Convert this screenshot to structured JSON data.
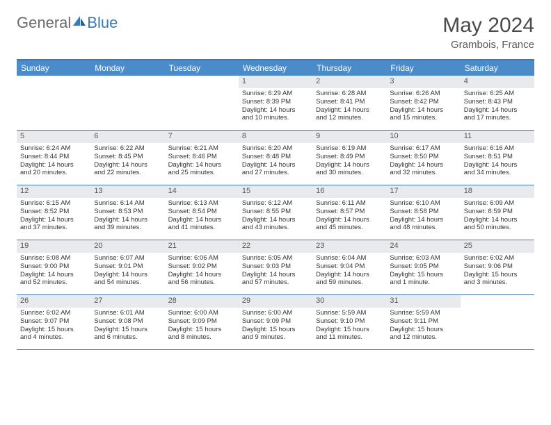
{
  "logo": {
    "part1": "General",
    "part2": "Blue"
  },
  "title": "May 2024",
  "subtitle": "Grambois, France",
  "colors": {
    "header_bg": "#4a8bc9",
    "border": "#3a7ab8",
    "daynum_bg": "#e8eaed",
    "text": "#333333"
  },
  "weekdays": [
    "Sunday",
    "Monday",
    "Tuesday",
    "Wednesday",
    "Thursday",
    "Friday",
    "Saturday"
  ],
  "weeks": [
    [
      {
        "n": "",
        "lines": [
          "",
          "",
          "",
          ""
        ]
      },
      {
        "n": "",
        "lines": [
          "",
          "",
          "",
          ""
        ]
      },
      {
        "n": "",
        "lines": [
          "",
          "",
          "",
          ""
        ]
      },
      {
        "n": "1",
        "lines": [
          "Sunrise: 6:29 AM",
          "Sunset: 8:39 PM",
          "Daylight: 14 hours",
          "and 10 minutes."
        ]
      },
      {
        "n": "2",
        "lines": [
          "Sunrise: 6:28 AM",
          "Sunset: 8:41 PM",
          "Daylight: 14 hours",
          "and 12 minutes."
        ]
      },
      {
        "n": "3",
        "lines": [
          "Sunrise: 6:26 AM",
          "Sunset: 8:42 PM",
          "Daylight: 14 hours",
          "and 15 minutes."
        ]
      },
      {
        "n": "4",
        "lines": [
          "Sunrise: 6:25 AM",
          "Sunset: 8:43 PM",
          "Daylight: 14 hours",
          "and 17 minutes."
        ]
      }
    ],
    [
      {
        "n": "5",
        "lines": [
          "Sunrise: 6:24 AM",
          "Sunset: 8:44 PM",
          "Daylight: 14 hours",
          "and 20 minutes."
        ]
      },
      {
        "n": "6",
        "lines": [
          "Sunrise: 6:22 AM",
          "Sunset: 8:45 PM",
          "Daylight: 14 hours",
          "and 22 minutes."
        ]
      },
      {
        "n": "7",
        "lines": [
          "Sunrise: 6:21 AM",
          "Sunset: 8:46 PM",
          "Daylight: 14 hours",
          "and 25 minutes."
        ]
      },
      {
        "n": "8",
        "lines": [
          "Sunrise: 6:20 AM",
          "Sunset: 8:48 PM",
          "Daylight: 14 hours",
          "and 27 minutes."
        ]
      },
      {
        "n": "9",
        "lines": [
          "Sunrise: 6:19 AM",
          "Sunset: 8:49 PM",
          "Daylight: 14 hours",
          "and 30 minutes."
        ]
      },
      {
        "n": "10",
        "lines": [
          "Sunrise: 6:17 AM",
          "Sunset: 8:50 PM",
          "Daylight: 14 hours",
          "and 32 minutes."
        ]
      },
      {
        "n": "11",
        "lines": [
          "Sunrise: 6:16 AM",
          "Sunset: 8:51 PM",
          "Daylight: 14 hours",
          "and 34 minutes."
        ]
      }
    ],
    [
      {
        "n": "12",
        "lines": [
          "Sunrise: 6:15 AM",
          "Sunset: 8:52 PM",
          "Daylight: 14 hours",
          "and 37 minutes."
        ]
      },
      {
        "n": "13",
        "lines": [
          "Sunrise: 6:14 AM",
          "Sunset: 8:53 PM",
          "Daylight: 14 hours",
          "and 39 minutes."
        ]
      },
      {
        "n": "14",
        "lines": [
          "Sunrise: 6:13 AM",
          "Sunset: 8:54 PM",
          "Daylight: 14 hours",
          "and 41 minutes."
        ]
      },
      {
        "n": "15",
        "lines": [
          "Sunrise: 6:12 AM",
          "Sunset: 8:55 PM",
          "Daylight: 14 hours",
          "and 43 minutes."
        ]
      },
      {
        "n": "16",
        "lines": [
          "Sunrise: 6:11 AM",
          "Sunset: 8:57 PM",
          "Daylight: 14 hours",
          "and 45 minutes."
        ]
      },
      {
        "n": "17",
        "lines": [
          "Sunrise: 6:10 AM",
          "Sunset: 8:58 PM",
          "Daylight: 14 hours",
          "and 48 minutes."
        ]
      },
      {
        "n": "18",
        "lines": [
          "Sunrise: 6:09 AM",
          "Sunset: 8:59 PM",
          "Daylight: 14 hours",
          "and 50 minutes."
        ]
      }
    ],
    [
      {
        "n": "19",
        "lines": [
          "Sunrise: 6:08 AM",
          "Sunset: 9:00 PM",
          "Daylight: 14 hours",
          "and 52 minutes."
        ]
      },
      {
        "n": "20",
        "lines": [
          "Sunrise: 6:07 AM",
          "Sunset: 9:01 PM",
          "Daylight: 14 hours",
          "and 54 minutes."
        ]
      },
      {
        "n": "21",
        "lines": [
          "Sunrise: 6:06 AM",
          "Sunset: 9:02 PM",
          "Daylight: 14 hours",
          "and 56 minutes."
        ]
      },
      {
        "n": "22",
        "lines": [
          "Sunrise: 6:05 AM",
          "Sunset: 9:03 PM",
          "Daylight: 14 hours",
          "and 57 minutes."
        ]
      },
      {
        "n": "23",
        "lines": [
          "Sunrise: 6:04 AM",
          "Sunset: 9:04 PM",
          "Daylight: 14 hours",
          "and 59 minutes."
        ]
      },
      {
        "n": "24",
        "lines": [
          "Sunrise: 6:03 AM",
          "Sunset: 9:05 PM",
          "Daylight: 15 hours",
          "and 1 minute."
        ]
      },
      {
        "n": "25",
        "lines": [
          "Sunrise: 6:02 AM",
          "Sunset: 9:06 PM",
          "Daylight: 15 hours",
          "and 3 minutes."
        ]
      }
    ],
    [
      {
        "n": "26",
        "lines": [
          "Sunrise: 6:02 AM",
          "Sunset: 9:07 PM",
          "Daylight: 15 hours",
          "and 4 minutes."
        ]
      },
      {
        "n": "27",
        "lines": [
          "Sunrise: 6:01 AM",
          "Sunset: 9:08 PM",
          "Daylight: 15 hours",
          "and 6 minutes."
        ]
      },
      {
        "n": "28",
        "lines": [
          "Sunrise: 6:00 AM",
          "Sunset: 9:09 PM",
          "Daylight: 15 hours",
          "and 8 minutes."
        ]
      },
      {
        "n": "29",
        "lines": [
          "Sunrise: 6:00 AM",
          "Sunset: 9:09 PM",
          "Daylight: 15 hours",
          "and 9 minutes."
        ]
      },
      {
        "n": "30",
        "lines": [
          "Sunrise: 5:59 AM",
          "Sunset: 9:10 PM",
          "Daylight: 15 hours",
          "and 11 minutes."
        ]
      },
      {
        "n": "31",
        "lines": [
          "Sunrise: 5:59 AM",
          "Sunset: 9:11 PM",
          "Daylight: 15 hours",
          "and 12 minutes."
        ]
      },
      {
        "n": "",
        "lines": [
          "",
          "",
          "",
          ""
        ]
      }
    ]
  ]
}
